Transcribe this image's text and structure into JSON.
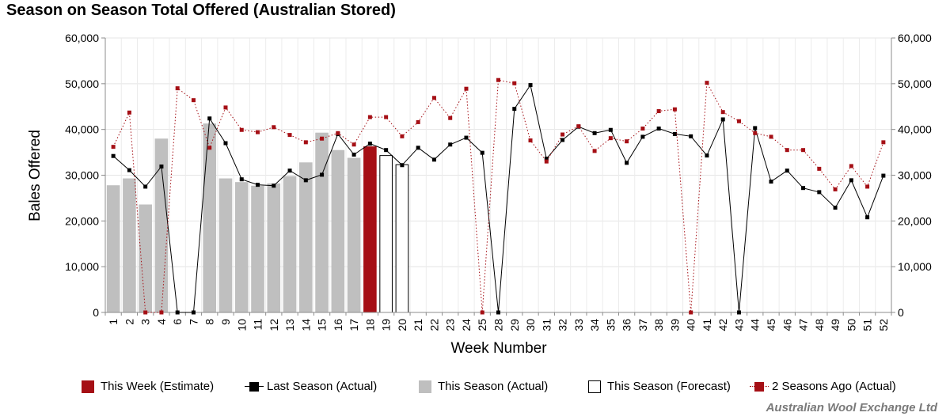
{
  "chart_data": {
    "type": "bar",
    "title": "Season on Season Total Offered (Australian Stored)",
    "xlabel": "Week Number",
    "ylabel": "Bales Offered",
    "ylim": [
      0,
      60000
    ],
    "yticks": [
      0,
      10000,
      20000,
      30000,
      40000,
      50000,
      60000
    ],
    "ytick_labels": [
      "0",
      "10,000",
      "20,000",
      "30,000",
      "40,000",
      "50,000",
      "60,000"
    ],
    "weeks": [
      "1",
      "2",
      "3",
      "4",
      "6",
      "7",
      "8",
      "9",
      "10",
      "11",
      "12",
      "13",
      "14",
      "15",
      "16",
      "17",
      "18",
      "19",
      "20",
      "21",
      "22",
      "23",
      "24",
      "25",
      "28",
      "29",
      "30",
      "31",
      "32",
      "33",
      "34",
      "35",
      "36",
      "37",
      "38",
      "39",
      "40",
      "41",
      "42",
      "43",
      "44",
      "45",
      "46",
      "47",
      "48",
      "49",
      "50",
      "51",
      "52"
    ],
    "grid": true,
    "series": [
      {
        "name": "This Season (Actual)",
        "kind": "bar",
        "color": "#bfbfbf",
        "values": [
          27800,
          29300,
          23600,
          38000,
          null,
          null,
          41300,
          29300,
          28500,
          27700,
          28200,
          29800,
          32800,
          39300,
          35500,
          33800,
          null,
          null,
          null,
          null,
          null,
          null,
          null,
          null,
          null,
          null,
          null,
          null,
          null,
          null,
          null,
          null,
          null,
          null,
          null,
          null,
          null,
          null,
          null,
          null,
          null,
          null,
          null,
          null,
          null,
          null,
          null,
          null,
          null
        ]
      },
      {
        "name": "This Week (Estimate)",
        "kind": "bar",
        "color": "#a50f15",
        "values": [
          null,
          null,
          null,
          null,
          null,
          null,
          null,
          null,
          null,
          null,
          null,
          null,
          null,
          null,
          null,
          null,
          36300,
          null,
          null,
          null,
          null,
          null,
          null,
          null,
          null,
          null,
          null,
          null,
          null,
          null,
          null,
          null,
          null,
          null,
          null,
          null,
          null,
          null,
          null,
          null,
          null,
          null,
          null,
          null,
          null,
          null,
          null,
          null,
          null
        ]
      },
      {
        "name": "This Season (Forecast)",
        "kind": "bar-outline",
        "color": "#000000",
        "values": [
          null,
          null,
          null,
          null,
          null,
          null,
          null,
          null,
          null,
          null,
          null,
          null,
          null,
          null,
          null,
          null,
          null,
          34300,
          32300,
          null,
          null,
          null,
          null,
          null,
          null,
          null,
          null,
          null,
          null,
          null,
          null,
          null,
          null,
          null,
          null,
          null,
          null,
          null,
          null,
          null,
          null,
          null,
          null,
          null,
          null,
          null,
          null,
          null,
          null
        ]
      },
      {
        "name": "Last Season (Actual)",
        "kind": "line",
        "color": "#000000",
        "values": [
          34200,
          31100,
          27500,
          31900,
          0,
          0,
          42400,
          37000,
          29100,
          27900,
          27700,
          31000,
          28900,
          30100,
          39000,
          34500,
          36900,
          35500,
          32200,
          36000,
          33400,
          36700,
          38200,
          34900,
          0,
          44500,
          49700,
          33600,
          37700,
          40600,
          39200,
          39900,
          32700,
          38400,
          40200,
          39000,
          38500,
          34300,
          42200,
          0,
          40300,
          28600,
          31000,
          27200,
          26300,
          22900,
          28900,
          20800,
          29900
        ]
      },
      {
        "name": "2 Seasons Ago (Actual)",
        "kind": "line-dotted",
        "color": "#a50f15",
        "values": [
          36200,
          43700,
          0,
          0,
          49000,
          46400,
          36000,
          44800,
          39900,
          39400,
          40500,
          38800,
          37200,
          38000,
          39200,
          36700,
          42700,
          42700,
          38500,
          41600,
          46900,
          42500,
          48900,
          0,
          50800,
          50100,
          37600,
          33000,
          38900,
          40700,
          35300,
          38100,
          37400,
          40200,
          44000,
          44400,
          0,
          50200,
          43800,
          41800,
          39200,
          38400,
          35500,
          35500,
          31400,
          26900,
          32000,
          27500,
          37200
        ]
      }
    ],
    "legend": [
      {
        "label": "This Week (Estimate)",
        "style": "bar",
        "color": "#a50f15"
      },
      {
        "label": "Last Season (Actual)",
        "style": "line",
        "color": "#000000"
      },
      {
        "label": "This Season (Actual)",
        "style": "bar",
        "color": "#bfbfbf"
      },
      {
        "label": "This Season (Forecast)",
        "style": "bar-outline",
        "color": "#000000"
      },
      {
        "label": "2 Seasons Ago (Actual)",
        "style": "line-dotted",
        "color": "#a50f15"
      }
    ],
    "legend_position": "bottom",
    "credit": "Australian Wool Exchange Ltd"
  }
}
